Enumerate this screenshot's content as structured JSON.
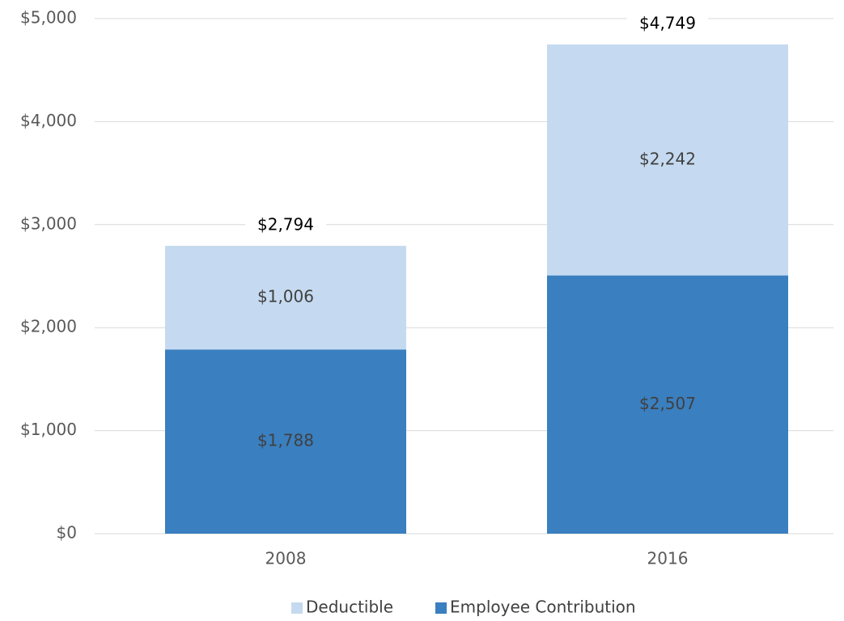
{
  "chart_data": {
    "type": "stacked_bar",
    "categories": [
      "2008",
      "2016"
    ],
    "series": [
      {
        "name": "Employee Contribution",
        "color": "#3a7fbf",
        "values": [
          1788,
          2507
        ],
        "value_labels": [
          "$1,788",
          "$2,507"
        ]
      },
      {
        "name": "Deductible",
        "color": "#c5daf0",
        "values": [
          1006,
          2242
        ],
        "value_labels": [
          "$1,006",
          "$2,242"
        ]
      }
    ],
    "totals": [
      2794,
      4749
    ],
    "total_labels": [
      "$2,794",
      "$4,749"
    ],
    "ylim": [
      0,
      5000
    ],
    "yticks": [
      {
        "value": 0,
        "label": "$0"
      },
      {
        "value": 1000,
        "label": "$1,000"
      },
      {
        "value": 2000,
        "label": "$2,000"
      },
      {
        "value": 3000,
        "label": "$3,000"
      },
      {
        "value": 4000,
        "label": "$4,000"
      },
      {
        "value": 5000,
        "label": "$5,000"
      }
    ],
    "grid": true,
    "legend": "bottom"
  }
}
